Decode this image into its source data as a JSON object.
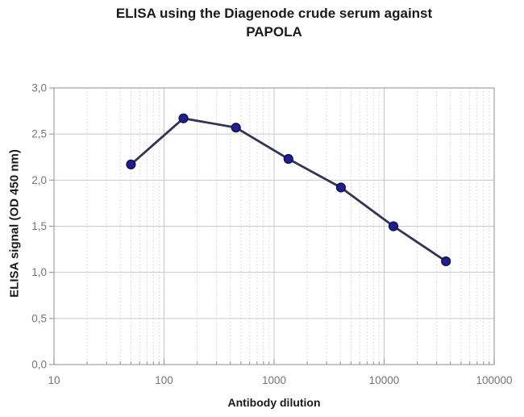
{
  "figure": {
    "title_lines": [
      "ELISA using the Diagenode crude serum against",
      "PAPOLA"
    ]
  },
  "chart_data": {
    "type": "line",
    "title": "ELISA using the Diagenode crude serum against PAPOLA",
    "xlabel": "Antibody dilution",
    "ylabel": "ELISA signal (OD 450 nm)",
    "x_scale": "log",
    "xlim": [
      10,
      100000
    ],
    "ylim": [
      0,
      3
    ],
    "series": [
      {
        "name": "ELISA signal",
        "x": [
          50,
          150,
          450,
          1350,
          4050,
          12150,
          36450
        ],
        "y": [
          2.17,
          2.67,
          2.57,
          2.23,
          1.92,
          1.5,
          1.12
        ]
      }
    ],
    "x_ticks": [
      10,
      100,
      1000,
      10000,
      100000
    ],
    "x_tick_labels": [
      "10",
      "100",
      "1000",
      "10000",
      "100000"
    ],
    "y_ticks": [
      0,
      0.5,
      1,
      1.5,
      2,
      2.5,
      3
    ],
    "y_tick_labels": [
      "0,0",
      "0,5",
      "1,0",
      "1,5",
      "2,0",
      "2,5",
      "3,0"
    ],
    "grid": true,
    "legend": false,
    "colors": {
      "background": "#ffffff",
      "marker_fill": "#1f1f8e",
      "marker_stroke": "#12125c",
      "line": "#333355",
      "grid_major": "#c8c8c8",
      "grid_minor": "#d4d4d4",
      "axis_border": "#a8a8a8",
      "tick_mark": "#909090",
      "tick_label": "#757575",
      "text": "#1a1a1a"
    }
  }
}
